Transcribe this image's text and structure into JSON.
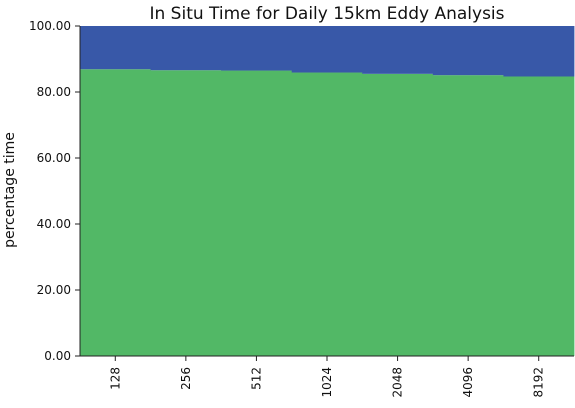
{
  "chart_data": {
    "type": "bar",
    "stacked": true,
    "title": "In Situ Time for Daily 15km Eddy Analysis",
    "xlabel": "",
    "ylabel": "percentage time",
    "categories": [
      "128",
      "256",
      "512",
      "1024",
      "2048",
      "4096",
      "8192"
    ],
    "series": [
      {
        "values": [
          86.9,
          86.6,
          86.5,
          85.9,
          85.5,
          85.1,
          84.7
        ],
        "color": "#52b866"
      },
      {
        "values": [
          13.1,
          13.4,
          13.5,
          14.1,
          14.5,
          14.9,
          15.3
        ],
        "color": "#3858a8"
      }
    ],
    "ylim": [
      0,
      100
    ],
    "yticks": [
      "0.00",
      "20.00",
      "40.00",
      "60.00",
      "80.00",
      "100.00"
    ],
    "ytick_values": [
      0,
      20,
      40,
      60,
      80,
      100
    ],
    "grid": false,
    "legend": "none"
  }
}
